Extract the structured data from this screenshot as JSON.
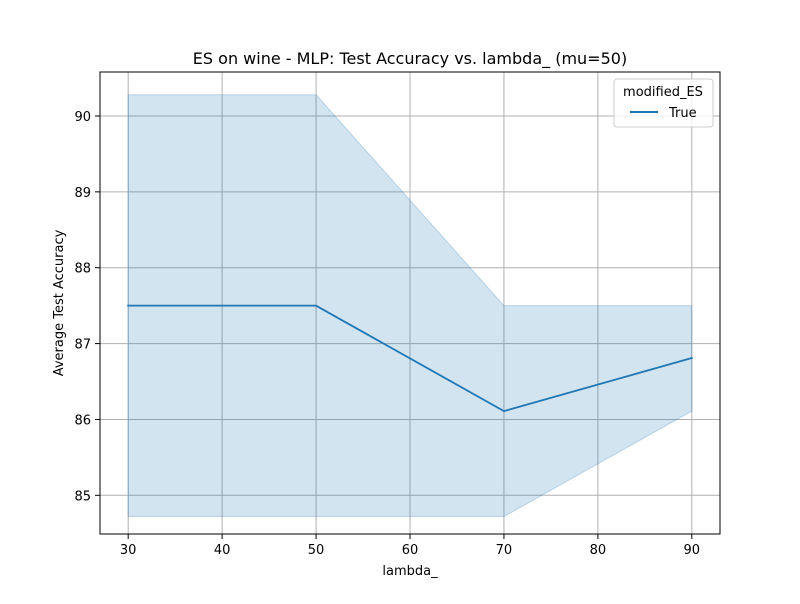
{
  "chart_data": {
    "type": "line",
    "title": "ES on wine - MLP: Test Accuracy vs. lambda_ (mu=50)",
    "xlabel": "lambda_",
    "ylabel": "Average Test Accuracy",
    "x": [
      30,
      50,
      70,
      90
    ],
    "xlim": [
      27,
      93
    ],
    "ylim": [
      84.49,
      90.58
    ],
    "xticks": [
      30,
      40,
      50,
      60,
      70,
      80,
      90
    ],
    "yticks": [
      85,
      86,
      87,
      88,
      89,
      90
    ],
    "grid": true,
    "legend": {
      "title": "modified_ES",
      "placement": "top-right"
    },
    "series": [
      {
        "name": "True",
        "values": [
          87.5,
          87.5,
          86.11,
          86.81
        ],
        "ci_lower": [
          84.72,
          84.72,
          84.72,
          86.11
        ],
        "ci_upper": [
          90.28,
          90.28,
          87.5,
          87.5
        ]
      }
    ],
    "colors": {
      "line": "#1f77b4",
      "band": "#1f77b4",
      "grid": "#b0b0b0",
      "axis": "#000000"
    }
  }
}
